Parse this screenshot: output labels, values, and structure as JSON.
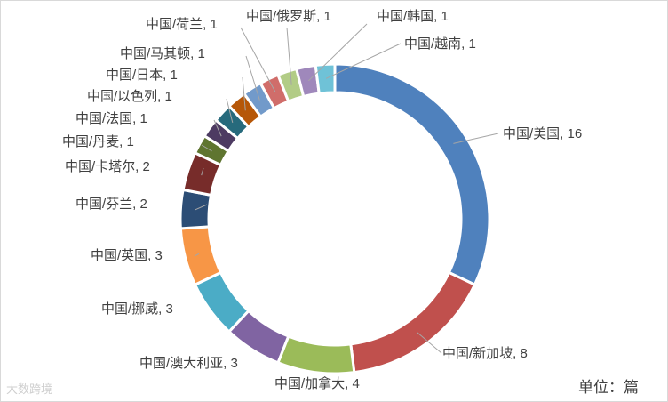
{
  "chart_data": {
    "type": "pie",
    "variant": "donut",
    "label_format": "{name}, {value}",
    "slices": [
      {
        "name": "中国/美国",
        "value": 16,
        "color": "#4f81bd"
      },
      {
        "name": "中国/新加坡",
        "value": 8,
        "color": "#c0504d"
      },
      {
        "name": "中国/加拿大",
        "value": 4,
        "color": "#9bbb59"
      },
      {
        "name": "中国/澳大利亚",
        "value": 3,
        "color": "#8064a2"
      },
      {
        "name": "中国/挪威",
        "value": 3,
        "color": "#4bacc6"
      },
      {
        "name": "中国/英国",
        "value": 3,
        "color": "#f79646"
      },
      {
        "name": "中国/芬兰",
        "value": 2,
        "color": "#2c4d75"
      },
      {
        "name": "中国/卡塔尔",
        "value": 2,
        "color": "#772c2a"
      },
      {
        "name": "中国/丹麦",
        "value": 1,
        "color": "#5f7530"
      },
      {
        "name": "中国/法国",
        "value": 1,
        "color": "#4d3b62"
      },
      {
        "name": "中国/以色列",
        "value": 1,
        "color": "#276a7c"
      },
      {
        "name": "中国/日本",
        "value": 1,
        "color": "#b65708"
      },
      {
        "name": "中国/马其顿",
        "value": 1,
        "color": "#729aca"
      },
      {
        "name": "中国/荷兰",
        "value": 1,
        "color": "#d06d6a"
      },
      {
        "name": "中国/俄罗斯",
        "value": 1,
        "color": "#b2cc86"
      },
      {
        "name": "中国/韩国",
        "value": 1,
        "color": "#9f88bb"
      },
      {
        "name": "中国/越南",
        "value": 1,
        "color": "#6fc2d7"
      }
    ]
  },
  "unit_label": "单位：篇",
  "watermark": "大数跨境"
}
